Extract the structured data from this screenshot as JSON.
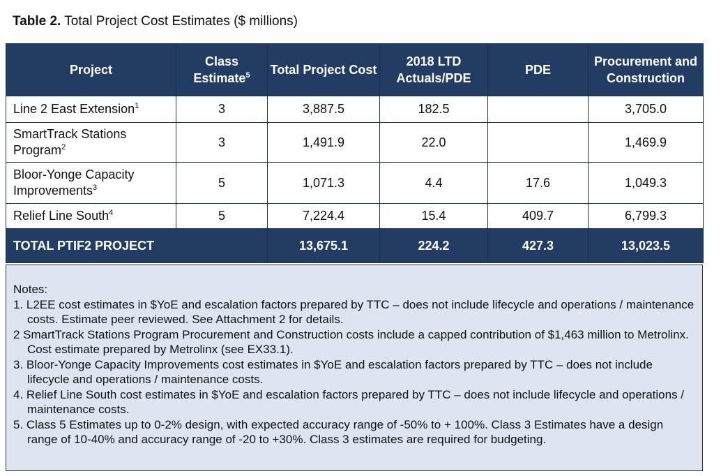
{
  "caption": {
    "label": "Table 2.",
    "text": "Total Project Cost Estimates ($ millions)"
  },
  "headers": {
    "project": "Project",
    "class_estimate": "Class Estimate",
    "class_estimate_sup": "5",
    "total_cost": "Total Project Cost",
    "ltd_actuals": "2018 LTD Actuals/PDE",
    "pde": "PDE",
    "procurement": "Procurement and Construction"
  },
  "rows": [
    {
      "project": "Line 2 East Extension",
      "sup": "1",
      "class": "3",
      "total": "3,887.5",
      "ltd": "182.5",
      "pde": "",
      "proc": "3,705.0"
    },
    {
      "project": "SmartTrack Stations Program",
      "sup": "2",
      "class": "3",
      "total": "1,491.9",
      "ltd": "22.0",
      "pde": "",
      "proc": "1,469.9"
    },
    {
      "project": "Bloor-Yonge Capacity Improvements",
      "sup": "3",
      "class": "5",
      "total": "1,071.3",
      "ltd": "4.4",
      "pde": "17.6",
      "proc": "1,049.3"
    },
    {
      "project": "Relief Line South",
      "sup": "4",
      "class": "5",
      "total": "7,224.4",
      "ltd": "15.4",
      "pde": "409.7",
      "proc": "6,799.3"
    }
  ],
  "total": {
    "label": "TOTAL PTIF2 PROJECT",
    "total": "13,675.1",
    "ltd": "224.2",
    "pde": "427.3",
    "proc": "13,023.5"
  },
  "notes": {
    "heading": "Notes:",
    "items": [
      "1. L2EE cost estimates in $YoE and escalation factors prepared by TTC – does not include lifecycle and operations / maintenance costs. Estimate peer reviewed. See Attachment 2 for details.",
      "2 SmartTrack Stations Program Procurement and Construction costs include a capped contribution of $1,463 million to Metrolinx. Cost estimate prepared by Metrolinx (see EX33.1).",
      "3. Bloor-Yonge Capacity Improvements cost estimates in $YoE and escalation factors prepared by TTC – does not include lifecycle and operations / maintenance costs.",
      "4. Relief Line South cost estimates in $YoE and escalation factors prepared by TTC – does not include lifecycle and operations / maintenance costs.",
      "5. Class 5 Estimates up to 0-2% design, with expected accuracy range of -50% to + 100%. Class 3 Estimates have a design range of 10-40% and accuracy range of -20 to +30%. Class 3 estimates are required for budgeting."
    ]
  }
}
